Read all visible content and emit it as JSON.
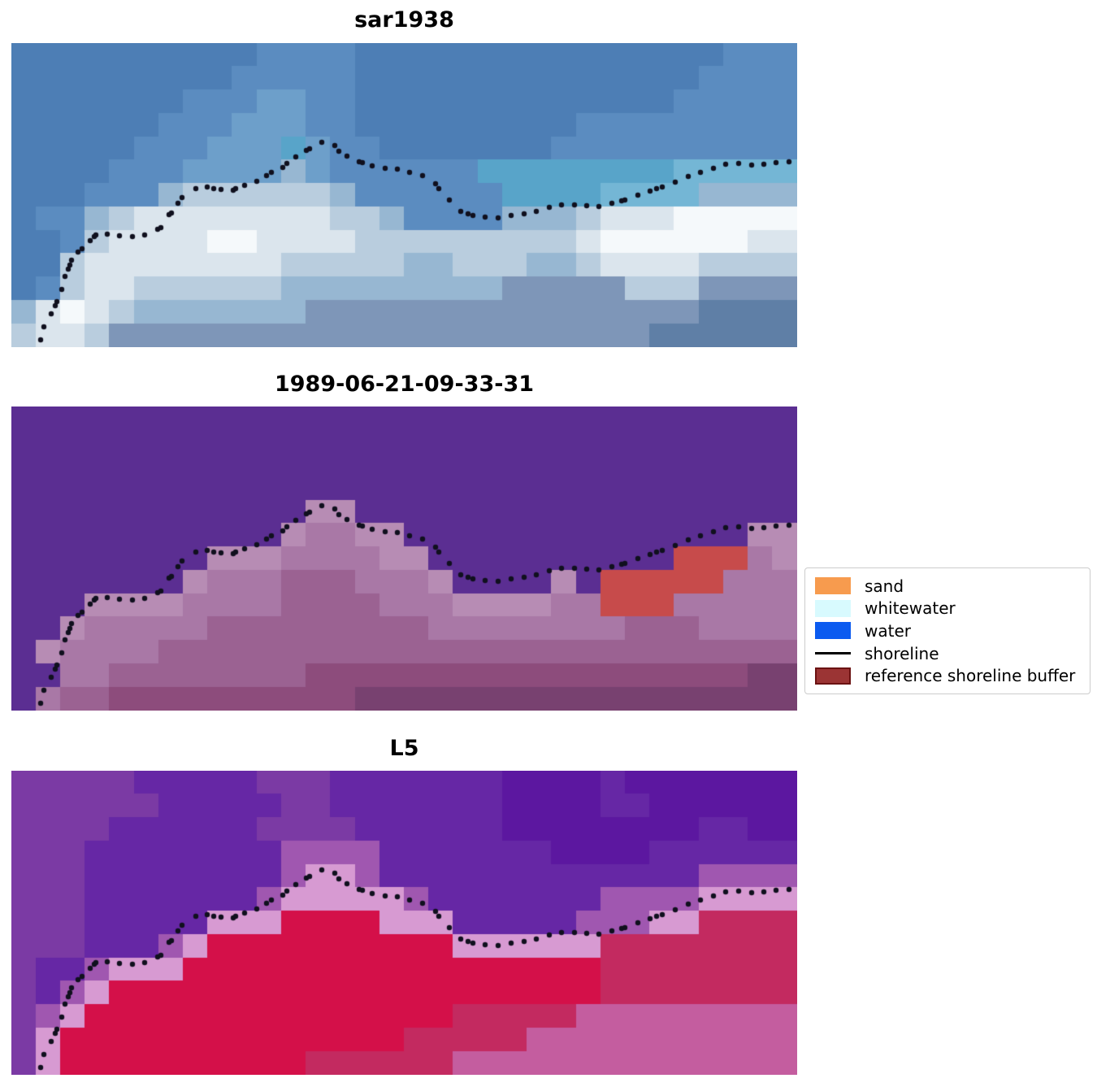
{
  "chart_data": {
    "type": "heatmap",
    "panels": [
      {
        "title": "sar1938",
        "grid_cols": 32,
        "grid_rows": 13,
        "palette": {
          "0": "#4d7eb5",
          "1": "#5b8cc0",
          "2": "#6d9fca",
          "3": "#58a4c9",
          "4": "#74b6d5",
          "5": "#97b7d2",
          "6": "#b9cdde",
          "7": "#dbe5ed",
          "8": "#f5f9fb",
          "9": "#7e96b8",
          "a": "#5f7fa6",
          "b": "#44699b"
        },
        "rows": [
          "00000000001111000000000000000111",
          "00000000011111000000000000001111",
          "00000001112211000000000000011111",
          "00000011122211000000000111111111",
          "00000111222321100000001111111111",
          "00001112222521111113333333344444",
          "00011156666665111111333344445555",
          "01156777777776651111555677788888",
          "00167777887777666666666788888877",
          "00677777777666665566655677776666",
          "01677666666555555555999996669999",
          "5787655555559999999999999999aaaa",
          "67769999999999999999999999aaaaaa"
        ]
      },
      {
        "title": "1989-06-21-09-33-31",
        "grid_cols": 32,
        "grid_rows": 13,
        "palette": {
          "0": "#5b2e92",
          "1": "#b78cb4",
          "2": "#a978a6",
          "3": "#9b6292",
          "4": "#8d4c7c",
          "5": "#c74b4b",
          "6": "#784170"
        },
        "rows": [
          "00000000000000000000000000000000",
          "00000000000000000000000000000000",
          "00000000000000000000000000000000",
          "00000000000000000000000000000000",
          "00000000000011000000000000000000",
          "00000000000122110000000000000011",
          "00000000111222211000000000055521",
          "00000001222333222100001055555222",
          "00011112222333322211112255522222",
          "00122222333333333222222223332222",
          "01222233333333333333333333333333",
          "00223333333344444444444444444466",
          "02334444444444666666666666666666"
        ]
      },
      {
        "title": "L5",
        "grid_cols": 32,
        "grid_rows": 13,
        "palette": {
          "0": "#7b3aa4",
          "1": "#6627a5",
          "2": "#5c17a0",
          "3": "#a057b0",
          "4": "#d79ad2",
          "5": "#d41049",
          "6": "#c32a60",
          "7": "#c45d9f"
        },
        "rows": [
          "00000111110001111111222212222222",
          "00000011111001111111222211222222",
          "00001111110000111111222222221122",
          "00011111111333311111112222111111",
          "00011111111344311111111111113333",
          "00011111113444443111111133334444",
          "00011111444555544411111333446666",
          "00011134555555555544444466666666",
          "01134445555555555555555566666666",
          "01345555555555555555555566666666",
          "03455555555555555566666777777777",
          "04555555555555556666677777777777",
          "04555555555566666677777777777777"
        ]
      }
    ],
    "shoreline": {
      "label": "shoreline",
      "color": "#10101e",
      "dot_radius": 3.2,
      "points": [
        [
          36,
          365
        ],
        [
          40,
          349
        ],
        [
          49,
          333
        ],
        [
          54,
          323
        ],
        [
          56,
          318
        ],
        [
          62,
          303
        ],
        [
          66,
          287
        ],
        [
          70,
          278
        ],
        [
          72,
          273
        ],
        [
          74,
          267
        ],
        [
          82,
          257
        ],
        [
          87,
          253
        ],
        [
          97,
          243
        ],
        [
          102,
          238
        ],
        [
          104,
          236
        ],
        [
          118,
          235
        ],
        [
          133,
          237
        ],
        [
          149,
          238
        ],
        [
          164,
          236
        ],
        [
          180,
          229
        ],
        [
          184,
          227
        ],
        [
          194,
          211
        ],
        [
          197,
          209
        ],
        [
          205,
          197
        ],
        [
          210,
          190
        ],
        [
          227,
          179
        ],
        [
          241,
          177
        ],
        [
          249,
          179
        ],
        [
          258,
          180
        ],
        [
          273,
          181
        ],
        [
          276,
          179
        ],
        [
          287,
          175
        ],
        [
          302,
          170
        ],
        [
          314,
          163
        ],
        [
          320,
          159
        ],
        [
          334,
          153
        ],
        [
          339,
          148
        ],
        [
          350,
          140
        ],
        [
          363,
          132
        ],
        [
          367,
          130
        ],
        [
          382,
          122
        ],
        [
          398,
          126
        ],
        [
          403,
          133
        ],
        [
          413,
          139
        ],
        [
          428,
          146
        ],
        [
          432,
          147
        ],
        [
          444,
          151
        ],
        [
          460,
          154
        ],
        [
          475,
          155
        ],
        [
          490,
          159
        ],
        [
          506,
          163
        ],
        [
          522,
          173
        ],
        [
          526,
          179
        ],
        [
          539,
          193
        ],
        [
          553,
          207
        ],
        [
          562,
          210
        ],
        [
          568,
          212
        ],
        [
          583,
          214
        ],
        [
          599,
          215
        ],
        [
          615,
          212
        ],
        [
          631,
          210
        ],
        [
          646,
          207
        ],
        [
          662,
          202
        ],
        [
          677,
          199
        ],
        [
          693,
          199
        ],
        [
          708,
          200
        ],
        [
          723,
          201
        ],
        [
          739,
          197
        ],
        [
          751,
          194
        ],
        [
          755,
          193
        ],
        [
          771,
          187
        ],
        [
          786,
          182
        ],
        [
          794,
          179
        ],
        [
          801,
          177
        ],
        [
          817,
          171
        ],
        [
          833,
          164
        ],
        [
          848,
          159
        ],
        [
          864,
          154
        ],
        [
          879,
          149
        ],
        [
          895,
          148
        ],
        [
          911,
          150
        ],
        [
          926,
          149
        ],
        [
          941,
          147
        ],
        [
          957,
          146
        ]
      ]
    },
    "legend": {
      "entries": [
        {
          "label": "sand",
          "swatch": "patch",
          "color": "#f79b4e"
        },
        {
          "label": "whitewater",
          "swatch": "patch",
          "color": "#d8fafe"
        },
        {
          "label": "water",
          "swatch": "patch",
          "color": "#0b5bf0"
        },
        {
          "label": "shoreline",
          "swatch": "line",
          "color": "#000000"
        },
        {
          "label": "reference shoreline buffer",
          "swatch": "patch",
          "color": "#9b3434",
          "edge_color": "#6b1212"
        }
      ]
    }
  }
}
